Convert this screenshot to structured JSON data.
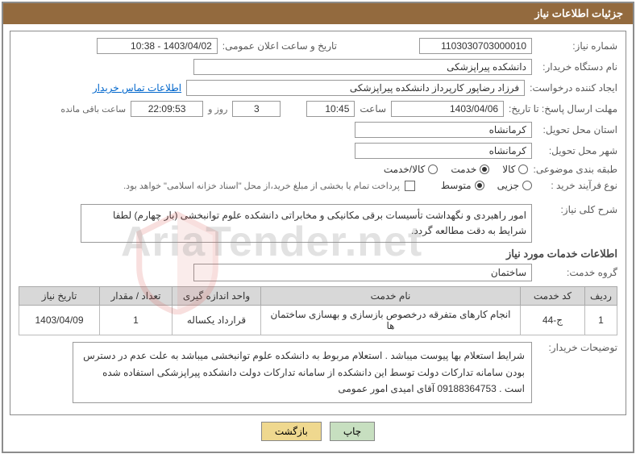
{
  "header": {
    "title": "جزئیات اطلاعات نیاز"
  },
  "fields": {
    "need_number_label": "شماره نیاز:",
    "need_number": "1103030703000010",
    "announce_date_label": "تاریخ و ساعت اعلان عمومی:",
    "announce_date": "1403/04/02 - 10:38",
    "buyer_org_label": "نام دستگاه خریدار:",
    "buyer_org": "دانشکده پیراپزشکی",
    "requester_label": "ایجاد کننده درخواست:",
    "requester": "فرزاد رضاپور کارپرداز دانشکده پیراپزشکی",
    "contact_link": "اطلاعات تماس خریدار",
    "deadline_label": "مهلت ارسال پاسخ: تا تاریخ:",
    "deadline_date": "1403/04/06",
    "time_label": "ساعت",
    "deadline_time": "10:45",
    "days_remaining": "3",
    "days_word": "روز و",
    "hours_remaining": "22:09:53",
    "remaining_word": "ساعت باقی مانده",
    "province_label": "استان محل تحویل:",
    "province": "کرمانشاه",
    "city_label": "شهر محل تحویل:",
    "city": "کرمانشاه",
    "category_label": "طبقه بندی موضوعی:",
    "cat_goods": "کالا",
    "cat_service": "خدمت",
    "cat_goods_service": "کالا/خدمت",
    "purchase_type_label": "نوع فرآیند خرید :",
    "type_minor": "جزیی",
    "type_medium": "متوسط",
    "payment_note": "پرداخت تمام یا بخشی از مبلغ خرید،از محل \"اسناد خزانه اسلامی\" خواهد بود.",
    "need_desc_label": "شرح کلی نیاز:",
    "need_desc": "امور راهبردی و نگهداشت تأسیسات برقی مکانیکی و مخابراتی دانشکده علوم توانبخشی (بار چهارم) لطفا شرایط به دقت مطالعه گردد.",
    "services_info_title": "اطلاعات خدمات مورد نیاز",
    "service_group_label": "گروه خدمت:",
    "service_group": "ساختمان",
    "buyer_notes_label": "توضیحات خریدار:",
    "buyer_notes": "شرایط استعلام بها پیوست میباشد .   استعلام مربوط به دانشکده علوم توانبخشی میباشد به علت عدم در دسترس بودن سامانه تدارکات دولت توسط این دانشکده از سامانه تدارکات دولت دانشکده پیراپزشکی استفاده شده است . 09188364753 آقای امیدی امور عمومی"
  },
  "table": {
    "columns": [
      "ردیف",
      "کد خدمت",
      "نام خدمت",
      "واحد اندازه گیری",
      "تعداد / مقدار",
      "تاریخ نیاز"
    ],
    "rows": [
      [
        "1",
        "ج-44",
        "انجام کارهای متفرقه درخصوص بازسازی و بهسازی ساختمان ها",
        "قرارداد یکساله",
        "1",
        "1403/04/09"
      ]
    ],
    "col_widths": [
      "40px",
      "80px",
      "auto",
      "110px",
      "90px",
      "100px"
    ]
  },
  "buttons": {
    "print": "چاپ",
    "back": "بازگشت"
  },
  "watermark": {
    "text": "AriaTender.net"
  },
  "colors": {
    "header_bg": "#936a3e",
    "border": "#8c8c8c",
    "th_bg": "#d8d8d8",
    "btn_print": "#c7dfc0",
    "btn_back": "#efd88f"
  }
}
